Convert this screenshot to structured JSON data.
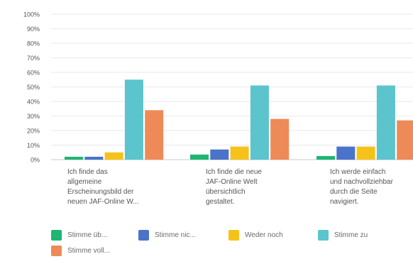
{
  "chart_data": {
    "type": "bar",
    "categories": [
      "Ich finde das allgemeine Erscheinungsbild der neuen JAF-Online W...",
      "Ich finde die neue JAF-Online Welt übersichtlich gestaltet.",
      "Ich werde einfach und nachvollziehbar durch die Seite navigiert."
    ],
    "category_lines": [
      [
        "Ich finde das",
        "allgemeine",
        "Erscheinungsbild der",
        "neuen JAF-Online W..."
      ],
      [
        "Ich finde die neue",
        "JAF-Online Welt",
        "übersichtlich",
        "gestaltet."
      ],
      [
        "Ich werde einfach",
        "und nachvollziehbar",
        "durch die Seite",
        "navigiert."
      ]
    ],
    "series": [
      {
        "name": "Stimme üb...",
        "color": "#1fb573",
        "values": [
          2,
          3.5,
          2.5
        ]
      },
      {
        "name": "Stimme nic...",
        "color": "#4a73c9",
        "values": [
          2,
          7,
          9
        ]
      },
      {
        "name": "Weder noch",
        "color": "#f5c219",
        "values": [
          5,
          9,
          9
        ]
      },
      {
        "name": "Stimme zu",
        "color": "#5bc4cc",
        "values": [
          55,
          51,
          51
        ]
      },
      {
        "name": "Stimme voll...",
        "color": "#ee8a57",
        "values": [
          34,
          28,
          27
        ]
      }
    ],
    "yticks": [
      "100%",
      "90%",
      "80%",
      "70%",
      "60%",
      "50%",
      "40%",
      "30%",
      "20%",
      "10%",
      "0%"
    ],
    "ylim": [
      0,
      100
    ],
    "grid": true,
    "legend_position": "bottom",
    "title": "",
    "xlabel": "",
    "ylabel": ""
  }
}
